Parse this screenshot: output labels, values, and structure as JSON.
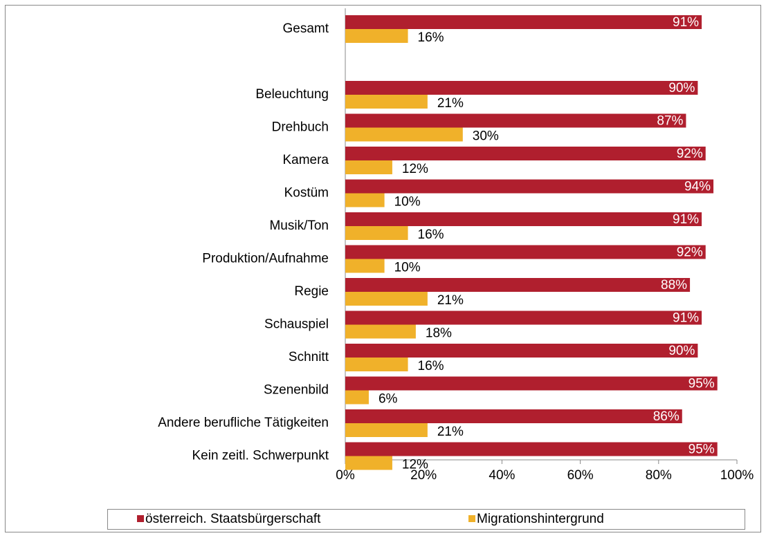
{
  "chart_data": {
    "type": "bar",
    "orientation": "horizontal",
    "categories": [
      "Gesamt",
      null,
      "Beleuchtung",
      "Drehbuch",
      "Kamera",
      "Kostüm",
      "Musik/Ton",
      "Produktion/Aufnahme",
      "Regie",
      "Schauspiel",
      "Schnitt",
      "Szenenbild",
      "Andere berufliche Tätigkeiten",
      "Kein zeitl. Schwerpunkt"
    ],
    "series": [
      {
        "name": "österreich. Staatsbürgerschaft",
        "color": "#b01f2e",
        "values": [
          91,
          null,
          90,
          87,
          92,
          94,
          91,
          92,
          88,
          91,
          90,
          95,
          86,
          95
        ],
        "value_labels": [
          "91%",
          null,
          "90%",
          "87%",
          "92%",
          "94%",
          "91%",
          "92%",
          "88%",
          "91%",
          "90%",
          "95%",
          "86%",
          "95%"
        ]
      },
      {
        "name": "Migrationshintergrund",
        "color": "#f0b12a",
        "values": [
          16,
          null,
          21,
          30,
          12,
          10,
          16,
          10,
          21,
          18,
          16,
          6,
          21,
          12
        ],
        "value_labels": [
          "16%",
          null,
          "21%",
          "30%",
          "12%",
          "10%",
          "16%",
          "10%",
          "21%",
          "18%",
          "16%",
          "6%",
          "21%",
          "12%"
        ]
      }
    ],
    "xlim": [
      0,
      100
    ],
    "xticks": [
      {
        "value": 0,
        "label": "0%"
      },
      {
        "value": 20,
        "label": "20%"
      },
      {
        "value": 40,
        "label": "40%"
      },
      {
        "value": 60,
        "label": "60%"
      },
      {
        "value": 80,
        "label": "80%"
      },
      {
        "value": 100,
        "label": "100%"
      }
    ],
    "legend": "bottom"
  }
}
